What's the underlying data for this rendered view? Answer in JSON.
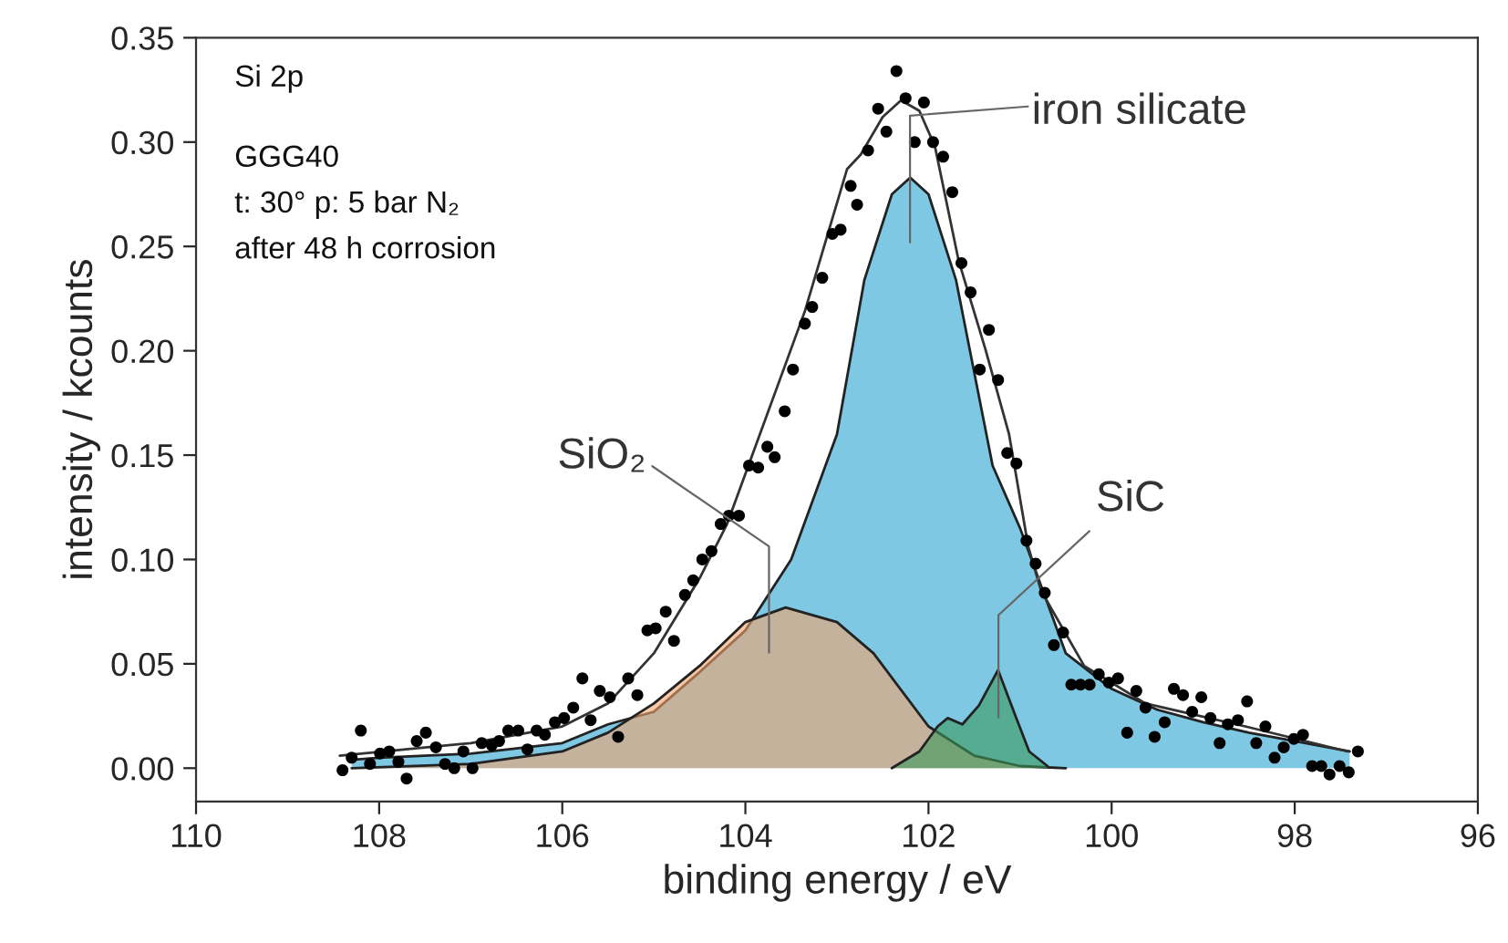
{
  "chart_data": {
    "type": "scatter",
    "xlabel": "binding energy / eV",
    "ylabel": "intensity / kcounts",
    "xlim": [
      110,
      96
    ],
    "xticks": [
      110,
      108,
      106,
      104,
      102,
      100,
      98,
      96
    ],
    "ylim": [
      -0.016,
      0.35
    ],
    "yticks": [
      {
        "value": 0,
        "label": "0.00"
      },
      {
        "value": 0.05,
        "label": "0.05"
      },
      {
        "value": 0.1,
        "label": "0.10"
      },
      {
        "value": 0.15,
        "label": "0.15"
      },
      {
        "value": 0.2,
        "label": "0.20"
      },
      {
        "value": 0.25,
        "label": "0.25"
      },
      {
        "value": 0.3,
        "label": "0.30"
      },
      {
        "value": 0.35,
        "label": "0.35"
      }
    ],
    "grid": false,
    "legend": false,
    "series": [
      {
        "type": "area",
        "color": "#7ec8e3",
        "x": [
          108.3,
          108,
          107,
          106,
          105.5,
          105,
          104.5,
          104,
          103.5,
          103,
          102.7,
          102.4,
          102.2,
          102,
          101.7,
          101.3,
          101,
          100.5,
          100,
          99.5,
          99,
          98.5,
          98,
          97.4
        ],
        "values": [
          0.004,
          0.005,
          0.007,
          0.012,
          0.021,
          0.027,
          0.046,
          0.066,
          0.1,
          0.16,
          0.234,
          0.275,
          0.283,
          0.275,
          0.234,
          0.145,
          0.115,
          0.055,
          0.038,
          0.028,
          0.022,
          0.017,
          0.013,
          0.008
        ]
      },
      {
        "type": "area",
        "color": "#f4a46c",
        "x": [
          108.3,
          107,
          106,
          105.5,
          105,
          104.5,
          104,
          103.56,
          103,
          102.6,
          102,
          101.5,
          101,
          100.5
        ],
        "values": [
          0.0,
          0.002,
          0.008,
          0.017,
          0.031,
          0.049,
          0.07,
          0.077,
          0.07,
          0.055,
          0.02,
          0.006,
          0.001,
          0.0
        ]
      },
      {
        "type": "area",
        "color": "#3a9a5a",
        "x": [
          102.4,
          102.1,
          101.9,
          101.79,
          101.63,
          101.45,
          101.24,
          101.05,
          100.9,
          100.7
        ],
        "values": [
          0.0,
          0.008,
          0.02,
          0.024,
          0.021,
          0.03,
          0.047,
          0.025,
          0.008,
          0.001
        ]
      },
      {
        "type": "line",
        "color": "#333333",
        "x": [
          108.43,
          107,
          106,
          105.5,
          105,
          104.5,
          104.2,
          103.8,
          103.35,
          102.89,
          102.74,
          102.5,
          102.3,
          102.1,
          101.93,
          101.67,
          101.38,
          101.12,
          100.91,
          100.77,
          100.3,
          99.63,
          98.54,
          97.42
        ],
        "values": [
          0.006,
          0.012,
          0.02,
          0.031,
          0.055,
          0.091,
          0.117,
          0.165,
          0.219,
          0.287,
          0.294,
          0.312,
          0.32,
          0.315,
          0.298,
          0.243,
          0.201,
          0.16,
          0.106,
          0.085,
          0.049,
          0.031,
          0.02,
          0.008
        ]
      },
      {
        "color": "#000000",
        "marker": "circle",
        "x": [
          108.4,
          108.3,
          108.2,
          108.1,
          107.99,
          107.89,
          107.79,
          107.7,
          107.59,
          107.49,
          107.38,
          107.28,
          107.18,
          107.08,
          106.98,
          106.88,
          106.77,
          106.69,
          106.59,
          106.48,
          106.38,
          106.28,
          106.19,
          106.08,
          105.98,
          105.88,
          105.78,
          105.69,
          105.59,
          105.48,
          105.39,
          105.28,
          105.18,
          105.07,
          104.98,
          104.87,
          104.78,
          104.66,
          104.57,
          104.47,
          104.37,
          104.27,
          104.18,
          104.07,
          103.96,
          103.86,
          103.76,
          103.68,
          103.57,
          103.48,
          103.35,
          103.27,
          103.16,
          103.05,
          102.96,
          102.85,
          102.78,
          102.66,
          102.55,
          102.46,
          102.35,
          102.25,
          102.15,
          102.05,
          101.95,
          101.84,
          101.74,
          101.64,
          101.54,
          101.44,
          101.34,
          101.24,
          101.14,
          101.04,
          100.93,
          100.83,
          100.73,
          100.63,
          100.53,
          100.44,
          100.34,
          100.24,
          100.14,
          100.03,
          99.93,
          99.83,
          99.73,
          99.63,
          99.53,
          99.42,
          99.32,
          99.22,
          99.12,
          99.02,
          98.92,
          98.82,
          98.73,
          98.62,
          98.52,
          98.42,
          98.32,
          98.22,
          98.12,
          98.01,
          97.91,
          97.81,
          97.71,
          97.62,
          97.51,
          97.41,
          97.31
        ],
        "values": [
          -0.001,
          0.005,
          0.018,
          0.002,
          0.007,
          0.008,
          0.003,
          -0.005,
          0.013,
          0.017,
          0.01,
          0.002,
          0.0,
          0.008,
          0.0,
          0.012,
          0.011,
          0.013,
          0.018,
          0.018,
          0.009,
          0.018,
          0.016,
          0.022,
          0.024,
          0.029,
          0.043,
          0.023,
          0.037,
          0.034,
          0.015,
          0.043,
          0.035,
          0.066,
          0.067,
          0.075,
          0.061,
          0.083,
          0.09,
          0.1,
          0.104,
          0.117,
          0.121,
          0.121,
          0.145,
          0.144,
          0.154,
          0.149,
          0.171,
          0.191,
          0.213,
          0.221,
          0.235,
          0.256,
          0.258,
          0.279,
          0.27,
          0.296,
          0.316,
          0.305,
          0.334,
          0.321,
          0.3,
          0.319,
          0.3,
          0.293,
          0.276,
          0.242,
          0.228,
          0.191,
          0.21,
          0.186,
          0.151,
          0.146,
          0.109,
          0.098,
          0.084,
          0.059,
          0.065,
          0.04,
          0.04,
          0.04,
          0.045,
          0.041,
          0.043,
          0.017,
          0.037,
          0.029,
          0.015,
          0.022,
          0.038,
          0.035,
          0.027,
          0.034,
          0.024,
          0.012,
          0.021,
          0.023,
          0.032,
          0.012,
          0.02,
          0.005,
          0.01,
          0.014,
          0.016,
          0.001,
          0.001,
          -0.003,
          0.001,
          -0.002,
          0.008
        ]
      }
    ],
    "annotations": [
      "Si 2p",
      "GGG40",
      "t: 30° p: 5 bar N₂",
      "after 48 h corrosion",
      "iron silicate",
      "SiO₂",
      "SiC"
    ]
  }
}
